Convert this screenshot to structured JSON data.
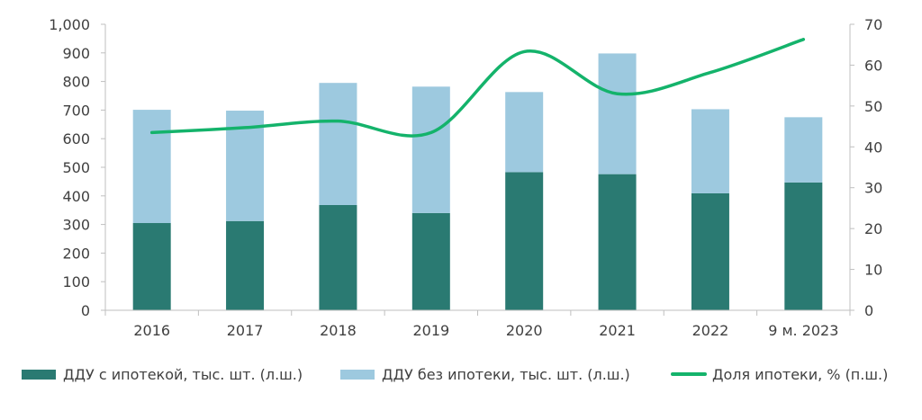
{
  "colors": {
    "with_mortgage": "#2a7a72",
    "without_mortgage": "#9dc9df",
    "mortgage_share": "#14b36b",
    "axis": "#404040",
    "grid": "#bfbfbf"
  },
  "chart_data": {
    "type": "bar",
    "stacked": true,
    "categories": [
      "2016",
      "2017",
      "2018",
      "2019",
      "2020",
      "2021",
      "2022",
      "9 м. 2023"
    ],
    "series": [
      {
        "name": "ДДУ с ипотекой, тыс. шт. (л.ш.)",
        "type": "bar",
        "axis": "left",
        "values": [
          305,
          312,
          368,
          340,
          483,
          476,
          409,
          447
        ]
      },
      {
        "name": "ДДУ без ипотеки, тыс. шт. (л.ш.)",
        "type": "bar",
        "axis": "left",
        "values": [
          396,
          386,
          427,
          442,
          280,
          422,
          294,
          228
        ]
      },
      {
        "name": "Доля ипотеки, % (п.ш.)",
        "type": "line",
        "axis": "right",
        "smooth": true,
        "values": [
          43.5,
          44.7,
          46.3,
          43.5,
          63.3,
          53.0,
          58.2,
          66.3
        ]
      }
    ],
    "y_left": {
      "min": 0,
      "max": 1000,
      "step": 100,
      "tick_labels": [
        "0",
        "100",
        "200",
        "300",
        "400",
        "500",
        "600",
        "700",
        "800",
        "900",
        "1,000"
      ]
    },
    "y_right": {
      "min": 0,
      "max": 70,
      "step": 10,
      "tick_labels": [
        "0",
        "10",
        "20",
        "30",
        "40",
        "50",
        "60",
        "70"
      ]
    },
    "legend_position": "bottom",
    "grid": false
  }
}
